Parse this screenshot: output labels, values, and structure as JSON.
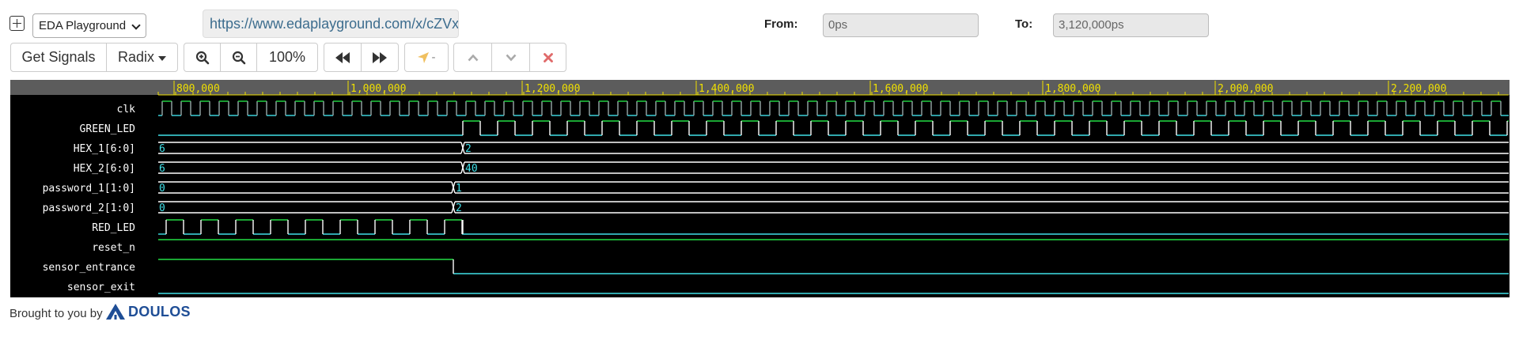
{
  "header": {
    "playground_select": "EDA Playground",
    "url": "https://www.edaplayground.com/x/cZVx",
    "from_label": "From:",
    "from_value": "0ps",
    "to_label": "To:",
    "to_value": "3,120,000ps"
  },
  "toolbar": {
    "get_signals": "Get Signals",
    "radix": "Radix",
    "zoom_level": "100%",
    "cursor_label": "-"
  },
  "waveform": {
    "ruler_ticks": [
      "800,000",
      "1,000,000",
      "1,200,000",
      "1,400,000",
      "1,600,000",
      "1,800,000",
      "2,000,000",
      "2,200,000"
    ],
    "signals": [
      {
        "name": "clk",
        "type": "clock"
      },
      {
        "name": "GREEN_LED",
        "type": "bit"
      },
      {
        "name": "HEX_1[6:0]",
        "type": "bus",
        "values": [
          "6",
          "2"
        ]
      },
      {
        "name": "HEX_2[6:0]",
        "type": "bus",
        "values": [
          "6",
          "40"
        ]
      },
      {
        "name": "password_1[1:0]",
        "type": "bus",
        "values": [
          "0",
          "1"
        ]
      },
      {
        "name": "password_2[1:0]",
        "type": "bus",
        "values": [
          "0",
          "2"
        ]
      },
      {
        "name": "RED_LED",
        "type": "bit"
      },
      {
        "name": "reset_n",
        "type": "bit"
      },
      {
        "name": "sensor_entrance",
        "type": "bit"
      },
      {
        "name": "sensor_exit",
        "type": "bit"
      }
    ],
    "colors": {
      "high": "#22dd44",
      "low": "#40e0e8",
      "ruler_text": "#f0e000",
      "background": "#000000"
    }
  },
  "footer": {
    "text": "Brought to you by",
    "brand": "DOULOS"
  }
}
